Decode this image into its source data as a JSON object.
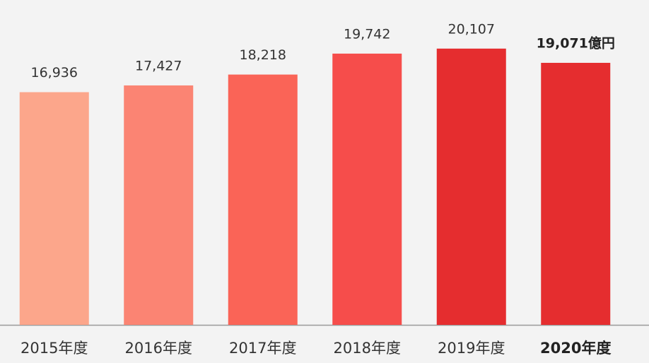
{
  "chart_data": {
    "type": "bar",
    "categories": [
      "2015年度",
      "2016年度",
      "2017年度",
      "2018年度",
      "2019年度",
      "2020年度"
    ],
    "values": [
      16936,
      17427,
      18218,
      19742,
      20107,
      19071
    ],
    "value_labels": [
      "16,936",
      "17,427",
      "18,218",
      "19,742",
      "20,107",
      "19,071億円"
    ],
    "colors": [
      "#fca68b",
      "#fb8473",
      "#fa6457",
      "#f64d4b",
      "#e52d2f",
      "#e52d2f"
    ],
    "ylim": [
      0,
      22000
    ]
  }
}
